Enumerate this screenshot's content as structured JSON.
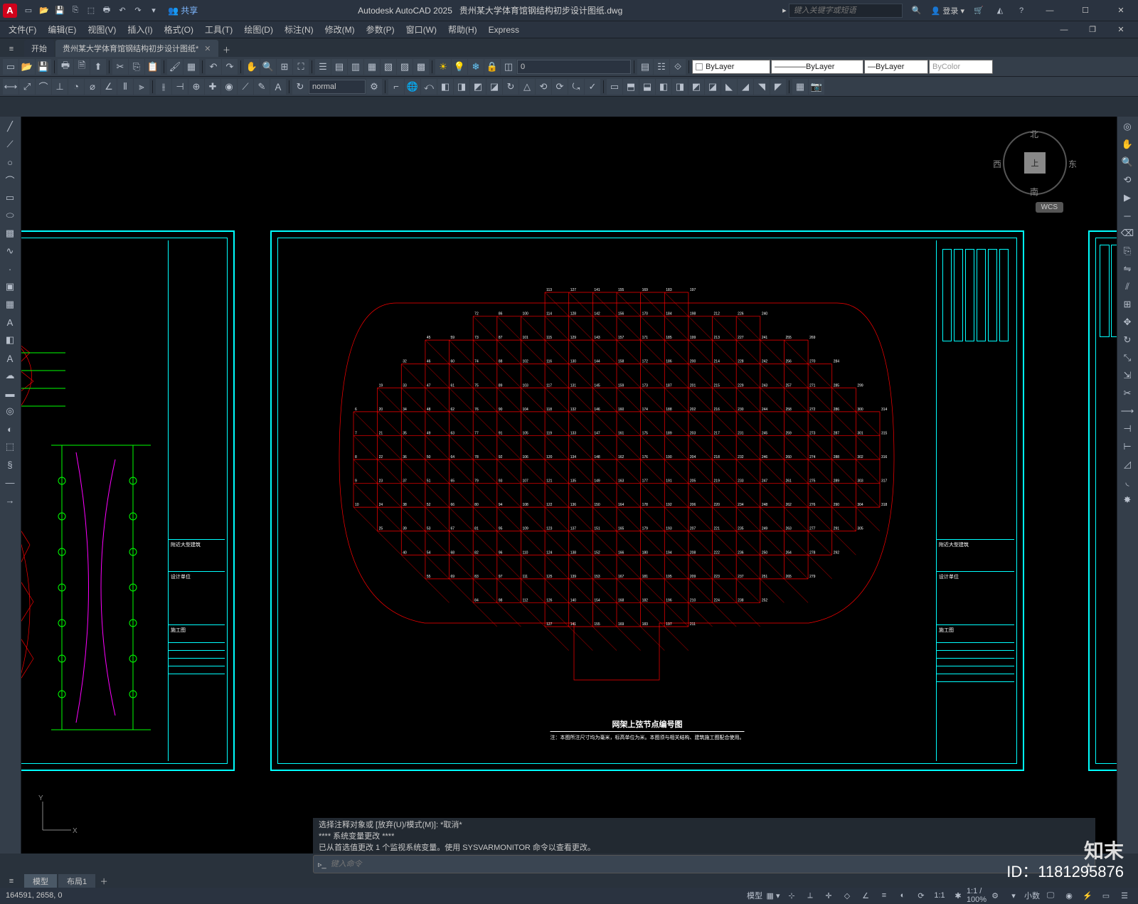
{
  "title": {
    "app": "Autodesk AutoCAD 2025",
    "file": "贵州某大学体育馆钢结构初步设计图纸.dwg",
    "share": "共享",
    "login": "登录",
    "search_ph": "键入关键字或短语"
  },
  "menu": [
    "文件(F)",
    "编辑(E)",
    "视图(V)",
    "插入(I)",
    "格式(O)",
    "工具(T)",
    "绘图(D)",
    "标注(N)",
    "修改(M)",
    "参数(P)",
    "窗口(W)",
    "帮助(H)",
    "Express"
  ],
  "tabs": {
    "start": "开始",
    "file": "贵州某大学体育馆钢结构初步设计图纸*"
  },
  "layer": {
    "current": "0",
    "bylayer": "ByLayer",
    "bycolor": "ByColor",
    "annoscale": "normal"
  },
  "compass": {
    "n": "北",
    "s": "南",
    "e": "东",
    "w": "西",
    "top": "上",
    "wcs": "WCS"
  },
  "cmd": {
    "l1": "选择注释对象或 [放弃(U)/模式(M)]: *取消*",
    "l2": "**** 系统变量更改 ****",
    "l3": "已从首选值更改 1 个监视系统变量。使用 SYSVARMONITOR 命令以查看更改。",
    "ph": "键入命令"
  },
  "layout": {
    "model": "模型",
    "layout1": "布局1"
  },
  "status": {
    "coords": "164591, 2658, 0",
    "scale": "1:1 / 100%",
    "decimal": "小数",
    "scale2": "1:1"
  },
  "drawing": {
    "caption": "网架上弦节点编号图"
  },
  "watermark": {
    "id": "ID：1181295876",
    "logo": "知末"
  }
}
